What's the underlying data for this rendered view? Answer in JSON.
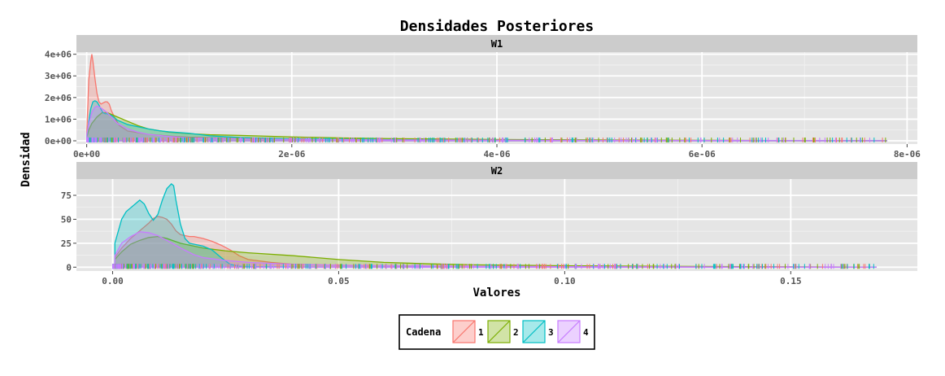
{
  "chart_data": {
    "type": "area",
    "title": "Densidades Posteriores",
    "xlabel": "Valores",
    "ylabel": "Densidad",
    "grid": true,
    "legend": {
      "title": "Cadena",
      "position": "bottom",
      "entries": [
        {
          "label": "1",
          "color": "#F8766D"
        },
        {
          "label": "2",
          "color": "#7CAE00"
        },
        {
          "label": "3",
          "color": "#00BFC4"
        },
        {
          "label": "4",
          "color": "#C77CFF"
        }
      ]
    },
    "panels": [
      {
        "name": "W1",
        "xlim": [
          -1e-07,
          8.1e-06
        ],
        "ylim": [
          -150000.0,
          4100000.0
        ],
        "xticks": [
          0,
          2e-06,
          4e-06,
          6e-06,
          8e-06
        ],
        "xtick_labels": [
          "0e+00",
          "2e-06",
          "4e-06",
          "6e-06",
          "8e-06"
        ],
        "yticks": [
          0,
          1000000.0,
          2000000.0,
          3000000.0,
          4000000.0
        ],
        "ytick_labels": [
          "0e+00",
          "1e+06",
          "2e+06",
          "3e+06",
          "4e+06"
        ],
        "series": [
          {
            "name": "1",
            "color": "#F8766D",
            "x": [
              1e-09,
              1e-08,
              2e-08,
              4e-08,
              5e-08,
              6e-08,
              8e-08,
              1e-07,
              1.2e-07,
              1.4e-07,
              1.6e-07,
              1.8e-07,
              2e-07,
              2.2e-07,
              2.4e-07,
              2.8e-07,
              3.2e-07,
              4e-07,
              6e-07,
              8e-07,
              1e-06,
              1.5e-06,
              2e-06,
              3e-06,
              4e-06,
              5e-06,
              6e-06,
              7e-06,
              7.8e-06
            ],
            "y": [
              400000,
              1500000,
              2800000,
              3700000,
              4000000,
              3700000,
              2900000,
              2200000,
              1800000,
              1700000,
              1750000,
              1800000,
              1800000,
              1700000,
              1400000,
              1000000,
              700000,
              450000,
              300000,
              220000,
              170000,
              110000,
              70000,
              40000,
              20000,
              12000,
              8000,
              4000,
              2000
            ]
          },
          {
            "name": "2",
            "color": "#7CAE00",
            "x": [
              1e-09,
              2e-08,
              5e-08,
              1e-07,
              1.5e-07,
              2e-07,
              3e-07,
              4e-07,
              5e-07,
              6e-07,
              8e-07,
              1e-06,
              1.2e-06,
              1.5e-06,
              2e-06,
              2.5e-06,
              3e-06,
              4e-06,
              5e-06,
              6e-06,
              7e-06,
              7.8e-06
            ],
            "y": [
              150000,
              500000,
              800000,
              1100000,
              1300000,
              1300000,
              1100000,
              900000,
              700000,
              550000,
              400000,
              330000,
              280000,
              250000,
              180000,
              130000,
              100000,
              60000,
              40000,
              25000,
              10000,
              5000
            ]
          },
          {
            "name": "3",
            "color": "#00BFC4",
            "x": [
              1e-09,
              2e-08,
              4e-08,
              6e-08,
              8e-08,
              1e-07,
              1.2e-07,
              1.4e-07,
              1.6e-07,
              1.8e-07,
              2e-07,
              2.5e-07,
              3e-07,
              4e-07,
              5e-07,
              6e-07,
              7e-07,
              8e-07,
              1e-06,
              1.2e-06,
              1.5e-06,
              2e-06,
              3e-06,
              4e-06,
              5e-06,
              6e-06,
              7.8e-06
            ],
            "y": [
              200000,
              900000,
              1500000,
              1800000,
              1850000,
              1800000,
              1650000,
              1450000,
              1300000,
              1250000,
              1250000,
              1150000,
              950000,
              750000,
              650000,
              550000,
              470000,
              420000,
              350000,
              230000,
              150000,
              90000,
              50000,
              25000,
              15000,
              8000,
              3000
            ]
          },
          {
            "name": "4",
            "color": "#C77CFF",
            "x": [
              1e-09,
              2e-08,
              5e-08,
              8e-08,
              1e-07,
              1.3e-07,
              1.6e-07,
              2e-07,
              2.5e-07,
              3e-07,
              4e-07,
              5e-07,
              6e-07,
              8e-07,
              1e-06,
              1.5e-06,
              2e-06,
              3e-06,
              4e-06,
              5e-06,
              6e-06,
              7e-06,
              7.8e-06
            ],
            "y": [
              300000,
              800000,
              1300000,
              1550000,
              1600000,
              1550000,
              1450000,
              1300000,
              1050000,
              800000,
              550000,
              400000,
              300000,
              200000,
              130000,
              90000,
              60000,
              40000,
              30000,
              20000,
              15000,
              10000,
              5000
            ]
          }
        ]
      },
      {
        "name": "W2",
        "xlim": [
          -0.008,
          0.178
        ],
        "ylim": [
          -4,
          92
        ],
        "xticks": [
          0,
          0.05,
          0.1,
          0.15
        ],
        "xtick_labels": [
          "0.00",
          "0.05",
          "0.10",
          "0.15"
        ],
        "yticks": [
          0,
          25,
          50,
          75
        ],
        "ytick_labels": [
          "0",
          "25",
          "50",
          "75"
        ],
        "series": [
          {
            "name": "1",
            "color": "#F8766D",
            "x": [
              0.0005,
              0.002,
              0.004,
              0.006,
              0.008,
              0.009,
              0.01,
              0.011,
              0.012,
              0.013,
              0.014,
              0.015,
              0.016,
              0.017,
              0.018,
              0.02,
              0.022,
              0.024,
              0.026,
              0.028,
              0.03,
              0.035,
              0.04,
              0.05,
              0.06,
              0.08,
              0.1,
              0.12,
              0.14,
              0.16,
              0.169
            ],
            "y": [
              10,
              20,
              30,
              38,
              46,
              51,
              53,
              52,
              50,
              45,
              38,
              34,
              33,
              32,
              32,
              30,
              27,
              23,
              18,
              12,
              8,
              5,
              3,
              2,
              1.5,
              1,
              0.6,
              0.4,
              0.3,
              0.1,
              0
            ]
          },
          {
            "name": "2",
            "color": "#7CAE00",
            "x": [
              0.0005,
              0.002,
              0.004,
              0.006,
              0.008,
              0.01,
              0.012,
              0.015,
              0.02,
              0.025,
              0.03,
              0.04,
              0.05,
              0.06,
              0.07,
              0.08,
              0.1,
              0.12,
              0.14,
              0.16,
              0.169
            ],
            "y": [
              8,
              16,
              24,
              28,
              31,
              32,
              30,
              25,
              20,
              17,
              15,
              12,
              8,
              5,
              3.5,
              2.5,
              1.5,
              1,
              0.5,
              0.2,
              0
            ]
          },
          {
            "name": "3",
            "color": "#00BFC4",
            "x": [
              0.0005,
              0.002,
              0.003,
              0.004,
              0.005,
              0.006,
              0.007,
              0.008,
              0.009,
              0.01,
              0.011,
              0.012,
              0.013,
              0.0135,
              0.014,
              0.015,
              0.016,
              0.017,
              0.018,
              0.02,
              0.022,
              0.024,
              0.026,
              0.028,
              0.03,
              0.035,
              0.04,
              0.05,
              0.07,
              0.1,
              0.13,
              0.169
            ],
            "y": [
              25,
              50,
              58,
              62,
              66,
              70,
              66,
              56,
              49,
              55,
              70,
              82,
              87,
              85,
              70,
              45,
              30,
              25,
              24,
              22,
              18,
              10,
              3,
              1,
              0.5,
              0.3,
              0.2,
              0.1,
              0.1,
              0,
              0,
              0
            ]
          },
          {
            "name": "4",
            "color": "#C77CFF",
            "x": [
              0.0005,
              0.002,
              0.004,
              0.006,
              0.008,
              0.01,
              0.012,
              0.015,
              0.018,
              0.02,
              0.025,
              0.03,
              0.04,
              0.05,
              0.06,
              0.08,
              0.1,
              0.12,
              0.14,
              0.16,
              0.169
            ],
            "y": [
              12,
              25,
              32,
              37,
              36,
              33,
              28,
              20,
              13,
              10,
              7,
              5,
              3,
              2,
              1.5,
              1,
              0.6,
              0.4,
              0.2,
              0.1,
              0
            ]
          }
        ]
      }
    ]
  }
}
